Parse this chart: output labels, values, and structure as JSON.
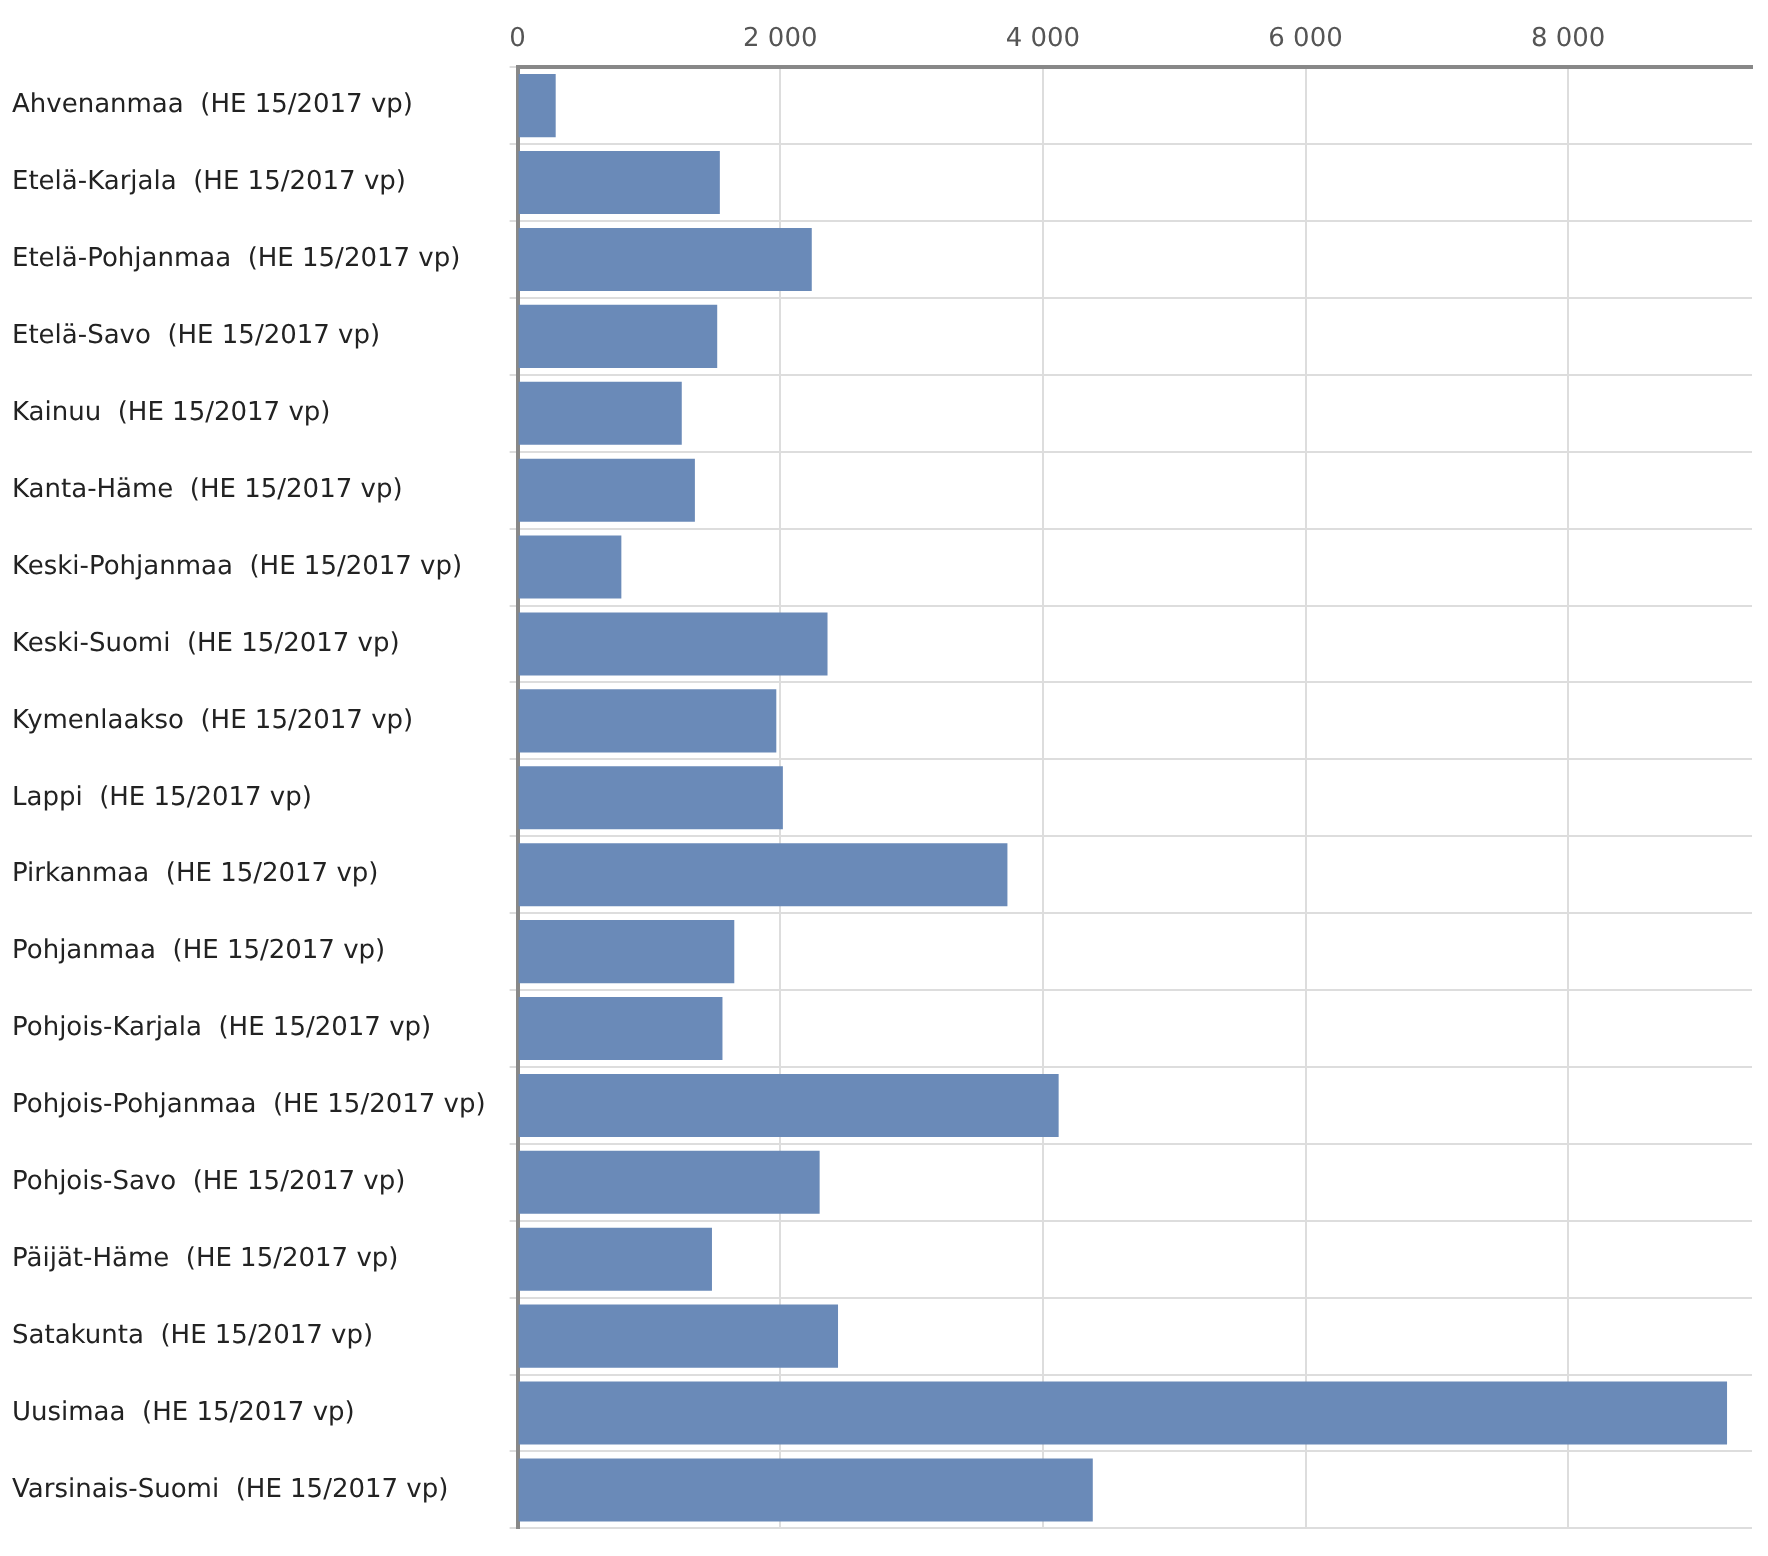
{
  "chart_data": {
    "type": "bar",
    "orientation": "horizontal",
    "categories": [
      "Ahvenanmaa  (HE 15/2017 vp)",
      "Etelä-Karjala  (HE 15/2017 vp)",
      "Etelä-Pohjanmaa  (HE 15/2017 vp)",
      "Etelä-Savo  (HE 15/2017 vp)",
      "Kainuu  (HE 15/2017 vp)",
      "Kanta-Häme  (HE 15/2017 vp)",
      "Keski-Pohjanmaa  (HE 15/2017 vp)",
      "Keski-Suomi  (HE 15/2017 vp)",
      "Kymenlaakso  (HE 15/2017 vp)",
      "Lappi  (HE 15/2017 vp)",
      "Pirkanmaa  (HE 15/2017 vp)",
      "Pohjanmaa  (HE 15/2017 vp)",
      "Pohjois-Karjala  (HE 15/2017 vp)",
      "Pohjois-Pohjanmaa  (HE 15/2017 vp)",
      "Pohjois-Savo  (HE 15/2017 vp)",
      "Päijät-Häme  (HE 15/2017 vp)",
      "Satakunta  (HE 15/2017 vp)",
      "Uusimaa  (HE 15/2017 vp)",
      "Varsinais-Suomi  (HE 15/2017 vp)"
    ],
    "values": [
      290,
      1540,
      2240,
      1520,
      1250,
      1350,
      790,
      2360,
      1970,
      2020,
      3730,
      1650,
      1560,
      4120,
      2300,
      1480,
      2440,
      9210,
      4380
    ],
    "color": "#6a8ab8",
    "xlim": [
      0,
      9400
    ],
    "xticks": [
      0,
      {
        "value": 2000,
        "label": "2 000"
      },
      {
        "value": 4000,
        "label": "4 000"
      },
      {
        "value": 6000,
        "label": "6 000"
      },
      {
        "value": 8000,
        "label": "8 000"
      }
    ],
    "grid": true
  }
}
